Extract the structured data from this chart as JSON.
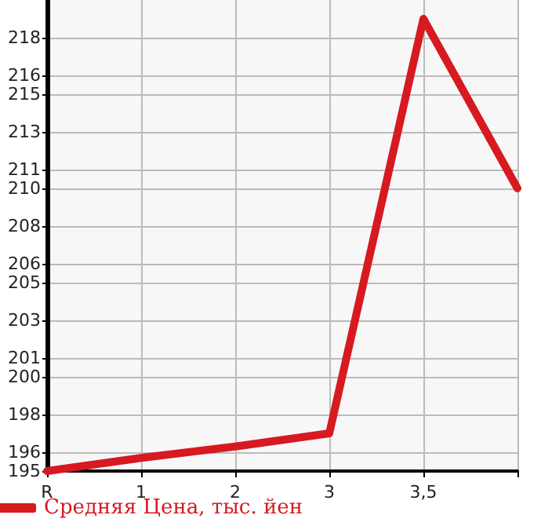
{
  "chart_data": {
    "type": "line",
    "categories": [
      "R",
      "1",
      "2",
      "3",
      "3,5",
      null
    ],
    "series": [
      {
        "name": "Средняя Цена, тыс. йен",
        "color": "#d71920",
        "values": [
          195,
          195.7,
          196.3,
          197,
          219,
          210
        ]
      }
    ],
    "ylim": [
      195,
      220
    ],
    "yticks": [
      195,
      196,
      198,
      200,
      201,
      203,
      205,
      206,
      208,
      210,
      211,
      213,
      215,
      216,
      218
    ],
    "grid": true,
    "legend": "bottom left",
    "marker": "none",
    "line_style": "solid"
  }
}
